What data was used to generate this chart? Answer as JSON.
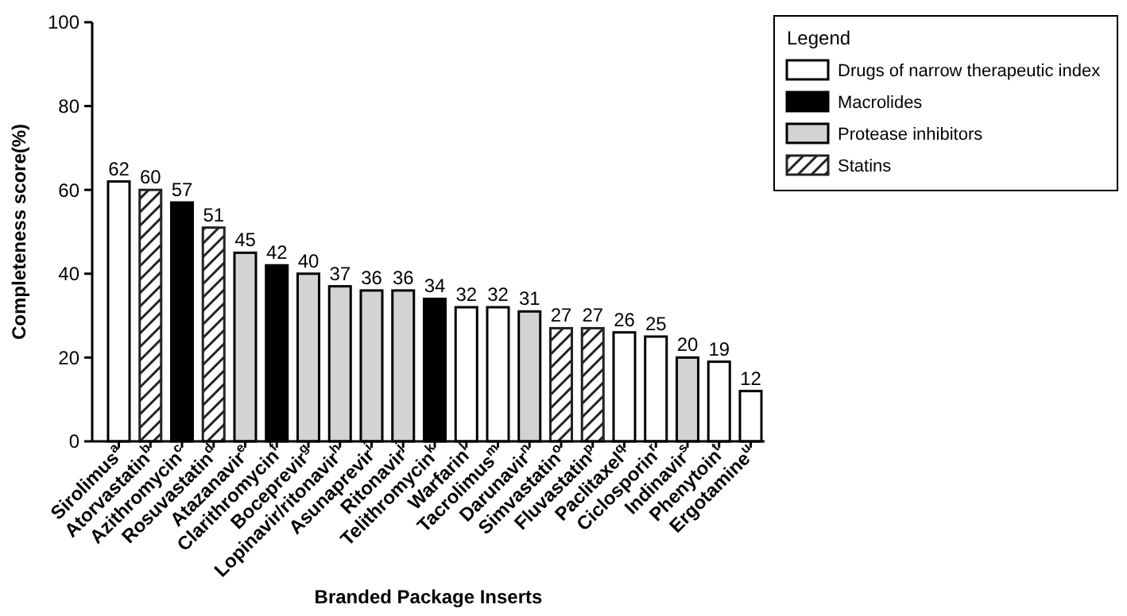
{
  "chart_data": {
    "type": "bar",
    "ylabel": "Completeness score(%)",
    "xlabel": "Branded Package Inserts",
    "legend": "right",
    "legend_title": "Legend",
    "data_labels": true,
    "ylim": [
      0,
      100
    ],
    "yticks": [
      0,
      20,
      40,
      60,
      80,
      100
    ],
    "categories": [
      "Sirolimus$^{a}$",
      "Atorvastatin$^{b}$",
      "Azithromycin$^{c}$",
      "Rosuvastatin$^{d}$",
      "Atazanavir$^{e}$",
      "Clarithromycin$^{f}$",
      "Boceprevir$^{g}$",
      "Lopinavir/ritonavir$^{h}$",
      "Asunaprevir$^{i}$",
      "Ritonavir$^{j}$",
      "Telithromycin$^{k}$",
      "Warfarin$^{l}$",
      "Tacrolimus$^{m}$",
      "Darunavir$^{n}$",
      "Simvastatin$^{o}$",
      "Fluvastatin$^{p}$",
      "Paclitaxel$^{q}$",
      "Ciclosporin$^{r}$",
      "Indinavir$^{s}$",
      "Phenytoin$^{t}$",
      "Ergotamine$^{u}$"
    ],
    "series": [
      {
        "name": "Drugs of narrow therapeutic index",
        "color": "#ffffff",
        "values": [
          62,
          null,
          null,
          null,
          null,
          null,
          null,
          null,
          null,
          null,
          null,
          32,
          32,
          null,
          null,
          null,
          26,
          25,
          null,
          19,
          12
        ]
      },
      {
        "name": "Macrolides",
        "color": "#000000",
        "values": [
          null,
          null,
          57,
          null,
          null,
          42,
          null,
          null,
          null,
          null,
          34,
          null,
          null,
          null,
          null,
          null,
          null,
          null,
          null,
          null,
          null
        ]
      },
      {
        "name": "Protease inhibitors",
        "color": "#d3d3d3",
        "values": [
          null,
          null,
          null,
          null,
          45,
          null,
          40,
          37,
          36,
          36,
          null,
          null,
          null,
          31,
          null,
          null,
          null,
          null,
          20,
          null,
          null
        ]
      },
      {
        "name": "Statins",
        "color": "#222222",
        "values": [
          null,
          60,
          null,
          51,
          null,
          null,
          null,
          null,
          null,
          null,
          null,
          null,
          null,
          null,
          27,
          27,
          null,
          null,
          null,
          null,
          null
        ]
      }
    ]
  }
}
